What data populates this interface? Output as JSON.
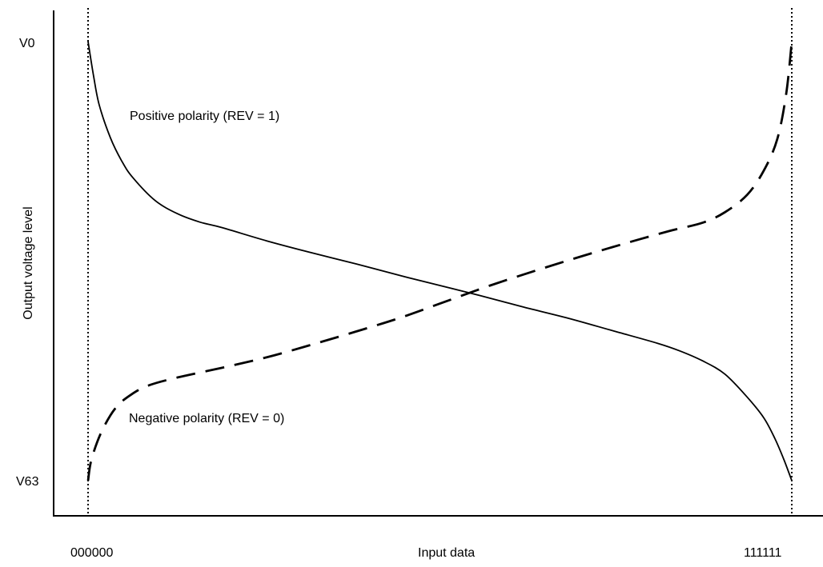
{
  "chart_data": {
    "type": "line",
    "title": "",
    "xlabel": "Input data",
    "ylabel": "Output voltage level",
    "x_tick_labels": [
      "000000",
      "111111"
    ],
    "y_tick_labels": [
      "V0",
      "V63"
    ],
    "x_domain": [
      0,
      63
    ],
    "y_domain_top_to_bottom": [
      "V0",
      "V63"
    ],
    "y_level_range": [
      0,
      63
    ],
    "grid": false,
    "boundary_lines": {
      "style": "dotted",
      "at_x": [
        0,
        63
      ]
    },
    "series": [
      {
        "name": "Positive polarity (REV = 1)",
        "style": "solid",
        "color": "#000000",
        "points": [
          [
            0,
            0
          ],
          [
            0.5,
            5
          ],
          [
            1,
            9.1
          ],
          [
            2,
            13.8
          ],
          [
            3,
            17.1
          ],
          [
            4,
            19.5
          ],
          [
            6,
            22.8
          ],
          [
            8,
            24.7
          ],
          [
            10,
            25.9
          ],
          [
            12,
            26.7
          ],
          [
            16,
            28.6
          ],
          [
            20,
            30.3
          ],
          [
            24,
            31.9
          ],
          [
            28,
            33.6
          ],
          [
            31.5,
            35
          ],
          [
            35,
            36.4
          ],
          [
            39,
            38.1
          ],
          [
            43,
            39.7
          ],
          [
            47,
            41.5
          ],
          [
            51,
            43.3
          ],
          [
            53,
            44.4
          ],
          [
            55,
            45.8
          ],
          [
            57,
            47.7
          ],
          [
            59,
            51
          ],
          [
            60.5,
            54
          ],
          [
            61.5,
            57
          ],
          [
            62.3,
            60
          ],
          [
            63,
            63
          ]
        ]
      },
      {
        "name": "Negative polarity (REV = 0)",
        "style": "dashed",
        "color": "#000000",
        "points": [
          [
            0,
            63
          ],
          [
            0.3,
            60
          ],
          [
            1.2,
            56
          ],
          [
            2.5,
            52.5
          ],
          [
            4,
            50.5
          ],
          [
            5.5,
            49.3
          ],
          [
            8,
            48.2
          ],
          [
            12,
            46.8
          ],
          [
            16,
            45.3
          ],
          [
            20,
            43.5
          ],
          [
            24,
            41.6
          ],
          [
            28,
            39.6
          ],
          [
            32,
            37.3
          ],
          [
            36,
            35
          ],
          [
            40,
            32.9
          ],
          [
            44,
            30.9
          ],
          [
            48,
            29
          ],
          [
            52,
            27.2
          ],
          [
            55,
            26
          ],
          [
            57,
            24.5
          ],
          [
            59,
            22
          ],
          [
            60.5,
            18.5
          ],
          [
            61.7,
            14
          ],
          [
            62.5,
            7.5
          ],
          [
            63,
            0
          ]
        ]
      }
    ],
    "annotations": [
      {
        "text": "Positive polarity (REV = 1)",
        "series": 0
      },
      {
        "text": "Negative polarity (REV = 0)",
        "series": 1
      }
    ]
  }
}
